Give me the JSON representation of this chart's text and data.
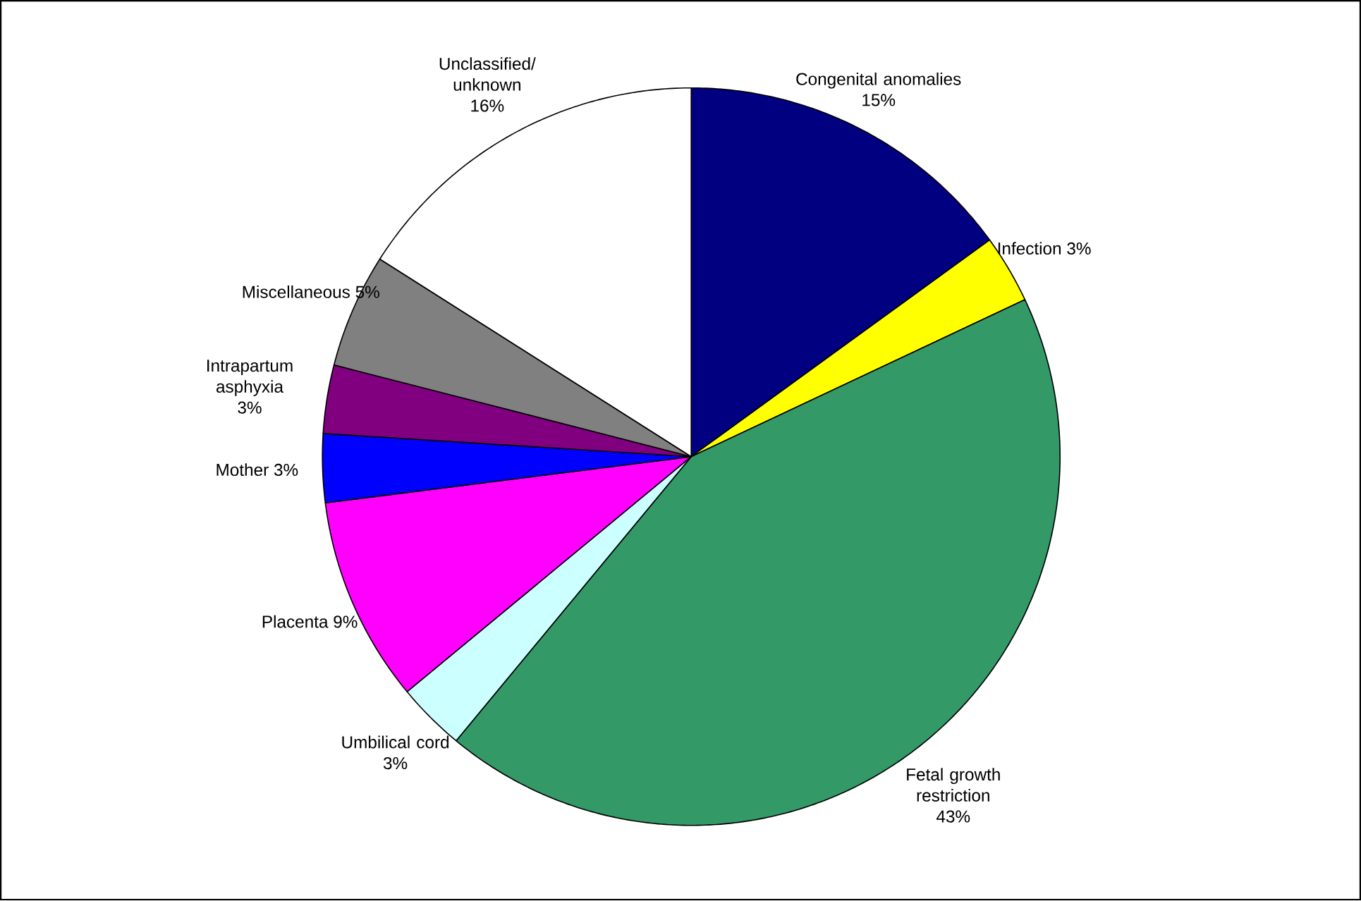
{
  "chart_data": {
    "type": "pie",
    "categories": [
      "Congenital anomalies",
      "Infection",
      "Fetal growth restriction",
      "Umbilical cord",
      "Placenta",
      "Mother",
      "Intrapartum asphyxia",
      "Miscellaneous",
      "Unclassified/ unknown"
    ],
    "values": [
      15,
      3,
      43,
      3,
      9,
      3,
      3,
      5,
      16
    ],
    "value_labels": [
      "15%",
      "3%",
      "43%",
      "3%",
      "9%",
      "3%",
      "3%",
      "5%",
      "16%"
    ],
    "colors": [
      "#000080",
      "#ffff00",
      "#339966",
      "#ccffff",
      "#ff00ff",
      "#0000ff",
      "#800080",
      "#808080",
      "#ffffff"
    ]
  }
}
